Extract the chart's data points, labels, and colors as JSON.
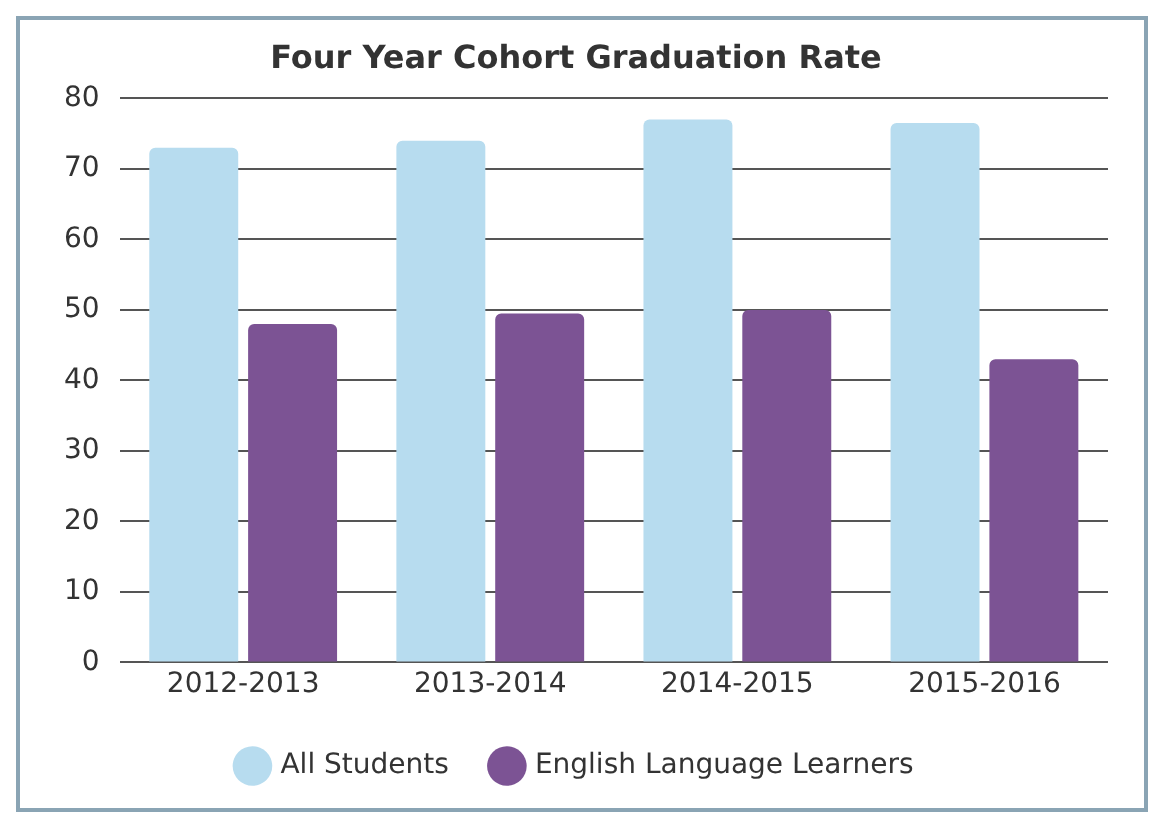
{
  "chart_data": {
    "type": "bar",
    "title": "Four Year Cohort Graduation Rate",
    "categories": [
      "2012-2013",
      "2013-2014",
      "2014-2015",
      "2015-2016"
    ],
    "series": [
      {
        "name": "All Students",
        "color": "#b7dcef",
        "values": [
          73,
          74,
          77,
          76.5
        ]
      },
      {
        "name": "English Language Learners",
        "color": "#7c5394",
        "values": [
          48,
          49.5,
          50,
          43
        ]
      }
    ],
    "ylim": [
      0,
      80
    ],
    "yticks": [
      0,
      10,
      20,
      30,
      40,
      50,
      60,
      70,
      80
    ],
    "grid": "y",
    "legend": "bottom"
  }
}
